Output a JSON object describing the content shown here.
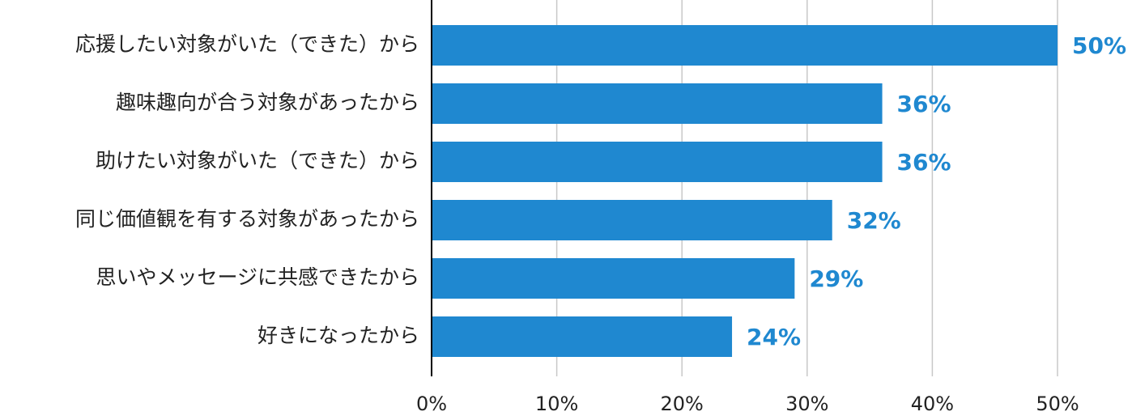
{
  "chart_data": {
    "type": "bar",
    "orientation": "horizontal",
    "categories": [
      "応援したい対象がいた（できた）から",
      "趣味趣向が合う対象があったから",
      "助けたい対象がいた（できた）から",
      "同じ価値観を有する対象があったから",
      "思いやメッセージに共感できたから",
      "好きになったから"
    ],
    "values": [
      50,
      36,
      36,
      32,
      29,
      24
    ],
    "value_labels": [
      "50%",
      "36%",
      "36%",
      "32%",
      "29%",
      "24%"
    ],
    "color": "#1f88d0",
    "xlim": [
      0,
      50
    ],
    "xticks": [
      {
        "value": 0,
        "label": "0%"
      },
      {
        "value": 10,
        "label": "10%"
      },
      {
        "value": 20,
        "label": "20%"
      },
      {
        "value": 30,
        "label": "30%"
      },
      {
        "value": 40,
        "label": "40%"
      },
      {
        "value": 50,
        "label": "50%"
      }
    ],
    "grid": true
  }
}
